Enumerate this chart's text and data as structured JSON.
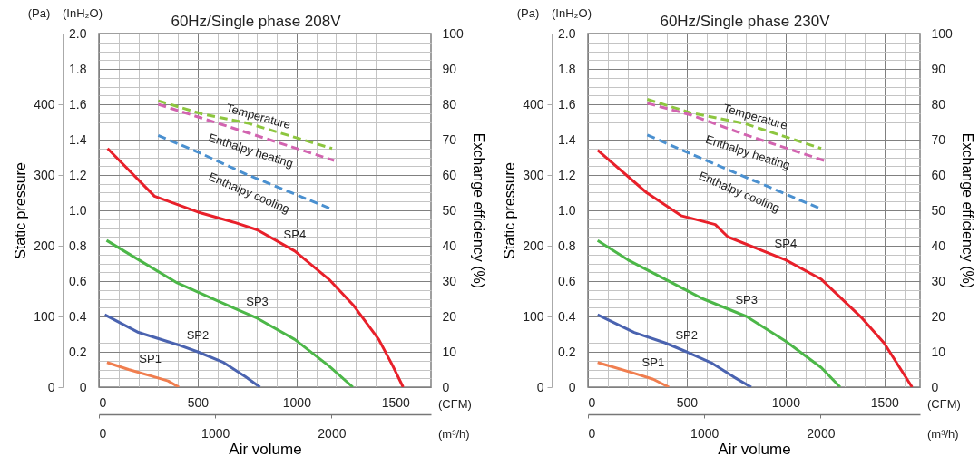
{
  "chart_data": [
    {
      "type": "line",
      "title": "60Hz/Single phase 208V",
      "xlabel": "Air volume",
      "ylabel": "Static pressure",
      "y2label": "Exchange efficiency (%)",
      "annotations": [
        "(Pa)",
        "(InH₂O)",
        "(CFM)",
        "(m³/h)"
      ],
      "xlim": [
        0,
        1680
      ],
      "xticks": [
        0,
        {
          "value": 100,
          "label": null
        },
        {
          "value": 200,
          "label": null
        },
        {
          "value": 300,
          "label": null
        },
        {
          "value": 400,
          "label": null
        },
        500,
        {
          "value": 600,
          "label": null
        },
        {
          "value": 700,
          "label": null
        },
        {
          "value": 800,
          "label": null
        },
        {
          "value": 900,
          "label": null
        },
        1000,
        {
          "value": 1100,
          "label": null
        },
        {
          "value": 1200,
          "label": null
        },
        {
          "value": 1300,
          "label": null
        },
        {
          "value": 1400,
          "label": null
        },
        1500,
        {
          "value": 1600,
          "label": null
        }
      ],
      "x2lim": [
        0,
        2855
      ],
      "x2ticks": [
        0,
        1000,
        2000
      ],
      "ylim": [
        0,
        2
      ],
      "yticks": [
        0,
        {
          "value": 0.05,
          "label": null
        },
        {
          "value": 0.1,
          "label": null
        },
        {
          "value": 0.15,
          "label": null
        },
        0.2,
        {
          "value": 0.25,
          "label": null
        },
        {
          "value": 0.3,
          "label": null
        },
        {
          "value": 0.35,
          "label": null
        },
        0.4,
        {
          "value": 0.45,
          "label": null
        },
        {
          "value": 0.5,
          "label": null
        },
        {
          "value": 0.55,
          "label": null
        },
        0.6,
        {
          "value": 0.65,
          "label": null
        },
        {
          "value": 0.7,
          "label": null
        },
        {
          "value": 0.75,
          "label": null
        },
        0.8,
        {
          "value": 0.85,
          "label": null
        },
        {
          "value": 0.9,
          "label": null
        },
        {
          "value": 0.95,
          "label": null
        },
        {
          "value": 1,
          "label": "1.0"
        },
        {
          "value": 1.05,
          "label": null
        },
        {
          "value": 1.1,
          "label": null
        },
        {
          "value": 1.15,
          "label": null
        },
        1.2,
        {
          "value": 1.25,
          "label": null
        },
        {
          "value": 1.3,
          "label": null
        },
        {
          "value": 1.35,
          "label": null
        },
        1.4,
        {
          "value": 1.45,
          "label": null
        },
        {
          "value": 1.5,
          "label": null
        },
        {
          "value": 1.55,
          "label": null
        },
        1.6,
        {
          "value": 1.65,
          "label": null
        },
        {
          "value": 1.7,
          "label": null
        },
        {
          "value": 1.75,
          "label": null
        },
        1.8,
        {
          "value": 1.85,
          "label": null
        },
        {
          "value": 1.9,
          "label": null
        },
        {
          "value": 1.95,
          "label": null
        },
        {
          "value": 2,
          "label": "2.0"
        }
      ],
      "y2lim": [
        0,
        100
      ],
      "y2ticks": [
        0,
        10,
        20,
        30,
        40,
        50,
        60,
        70,
        80,
        90,
        100
      ],
      "y3lim": [
        0,
        500
      ],
      "y3ticks": [
        0,
        100,
        200,
        300,
        400
      ],
      "grid": true,
      "series": [
        {
          "name": "SP1",
          "color": "#f07e4f",
          "line_style": "solid",
          "x": [
            41,
            150,
            260,
            350,
            405
          ],
          "values": [
            0.14,
            0.1,
            0.065,
            0.035,
            0
          ]
        },
        {
          "name": "SP2",
          "color": "#4a63b0",
          "line_style": "solid",
          "x": [
            30,
            200,
            400,
            500,
            630,
            740,
            815
          ],
          "values": [
            0.41,
            0.31,
            0.24,
            0.2,
            0.14,
            0.06,
            0
          ]
        },
        {
          "name": "SP3",
          "color": "#4cb748",
          "line_style": "solid",
          "x": [
            39,
            202,
            396,
            596,
            801,
            991,
            1164,
            1285
          ],
          "values": [
            0.83,
            0.72,
            0.59,
            0.49,
            0.39,
            0.27,
            0.12,
            0
          ]
        },
        {
          "name": "SP4",
          "color": "#e8202a",
          "line_style": "solid",
          "x": [
            44,
            281,
            502,
            691,
            801,
            991,
            1164,
            1290,
            1416,
            1487,
            1539
          ],
          "values": [
            1.35,
            1.08,
            0.99,
            0.93,
            0.89,
            0.77,
            0.61,
            0.46,
            0.27,
            0.12,
            0
          ]
        },
        {
          "name": "Temperature",
          "color": "#8dc63f",
          "line_style": "dashed",
          "axis": "y2",
          "x": [
            300,
            520,
            750,
            1180
          ],
          "values": [
            81,
            77.3,
            74.7,
            67.5
          ]
        },
        {
          "name": "Enthalpy heating",
          "color": "#d264b0",
          "line_style": "dashed",
          "axis": "y2",
          "x": [
            300,
            520,
            750,
            1190
          ],
          "values": [
            80,
            76.1,
            72,
            64.1
          ]
        },
        {
          "name": "Enthalpy cooling",
          "color": "#4a90d0",
          "line_style": "dashed",
          "axis": "y2",
          "x": [
            300,
            520,
            750,
            1175
          ],
          "values": [
            71.2,
            66,
            60.1,
            50.4
          ]
        }
      ]
    },
    {
      "type": "line",
      "title": "60Hz/Single phase 230V",
      "xlabel": "Air volume",
      "ylabel": "Static pressure",
      "y2label": "Exchange efficiency (%)",
      "annotations": [
        "(Pa)",
        "(InH₂O)",
        "(CFM)",
        "(m³/h)"
      ],
      "xlim": [
        0,
        1680
      ],
      "xticks": [
        0,
        {
          "value": 100,
          "label": null
        },
        {
          "value": 200,
          "label": null
        },
        {
          "value": 300,
          "label": null
        },
        {
          "value": 400,
          "label": null
        },
        500,
        {
          "value": 600,
          "label": null
        },
        {
          "value": 700,
          "label": null
        },
        {
          "value": 800,
          "label": null
        },
        {
          "value": 900,
          "label": null
        },
        1000,
        {
          "value": 1100,
          "label": null
        },
        {
          "value": 1200,
          "label": null
        },
        {
          "value": 1300,
          "label": null
        },
        {
          "value": 1400,
          "label": null
        },
        1500,
        {
          "value": 1600,
          "label": null
        }
      ],
      "x2lim": [
        0,
        2855
      ],
      "x2ticks": [
        0,
        1000,
        2000
      ],
      "ylim": [
        0,
        2
      ],
      "yticks": [
        0,
        {
          "value": 0.05,
          "label": null
        },
        {
          "value": 0.1,
          "label": null
        },
        {
          "value": 0.15,
          "label": null
        },
        0.2,
        {
          "value": 0.25,
          "label": null
        },
        {
          "value": 0.3,
          "label": null
        },
        {
          "value": 0.35,
          "label": null
        },
        0.4,
        {
          "value": 0.45,
          "label": null
        },
        {
          "value": 0.5,
          "label": null
        },
        {
          "value": 0.55,
          "label": null
        },
        0.6,
        {
          "value": 0.65,
          "label": null
        },
        {
          "value": 0.7,
          "label": null
        },
        {
          "value": 0.75,
          "label": null
        },
        0.8,
        {
          "value": 0.85,
          "label": null
        },
        {
          "value": 0.9,
          "label": null
        },
        {
          "value": 0.95,
          "label": null
        },
        {
          "value": 1,
          "label": "1.0"
        },
        {
          "value": 1.05,
          "label": null
        },
        {
          "value": 1.1,
          "label": null
        },
        {
          "value": 1.15,
          "label": null
        },
        1.2,
        {
          "value": 1.25,
          "label": null
        },
        {
          "value": 1.3,
          "label": null
        },
        {
          "value": 1.35,
          "label": null
        },
        1.4,
        {
          "value": 1.45,
          "label": null
        },
        {
          "value": 1.5,
          "label": null
        },
        {
          "value": 1.55,
          "label": null
        },
        1.6,
        {
          "value": 1.65,
          "label": null
        },
        {
          "value": 1.7,
          "label": null
        },
        {
          "value": 1.75,
          "label": null
        },
        1.8,
        {
          "value": 1.85,
          "label": null
        },
        {
          "value": 1.9,
          "label": null
        },
        {
          "value": 1.95,
          "label": null
        },
        {
          "value": 2,
          "label": "2.0"
        }
      ],
      "y2lim": [
        0,
        100
      ],
      "y2ticks": [
        0,
        10,
        20,
        30,
        40,
        50,
        60,
        70,
        80,
        90,
        100
      ],
      "y3lim": [
        0,
        500
      ],
      "y3ticks": [
        0,
        100,
        200,
        300,
        400
      ],
      "grid": true,
      "series": [
        {
          "name": "SP1",
          "color": "#f07e4f",
          "line_style": "solid",
          "x": [
            49,
            230,
            330,
            410
          ],
          "values": [
            0.14,
            0.08,
            0.045,
            0
          ]
        },
        {
          "name": "SP2",
          "color": "#4a63b0",
          "line_style": "solid",
          "x": [
            49,
            234,
            392,
            499,
            629,
            740,
            826
          ],
          "values": [
            0.41,
            0.31,
            0.25,
            0.2,
            0.135,
            0.056,
            0
          ]
        },
        {
          "name": "SP3",
          "color": "#4cb748",
          "line_style": "solid",
          "x": [
            49,
            202,
            392,
            581,
            802,
            1000,
            1181,
            1276
          ],
          "values": [
            0.83,
            0.72,
            0.61,
            0.5,
            0.4,
            0.26,
            0.11,
            0
          ]
        },
        {
          "name": "SP4",
          "color": "#e8202a",
          "line_style": "solid",
          "x": [
            49,
            297,
            471,
            644,
            708,
            1000,
            1181,
            1387,
            1498,
            1640
          ],
          "values": [
            1.34,
            1.1,
            0.97,
            0.92,
            0.85,
            0.72,
            0.61,
            0.39,
            0.25,
            0
          ]
        },
        {
          "name": "Temperature",
          "color": "#8dc63f",
          "line_style": "dashed",
          "axis": "y2",
          "x": [
            300,
            520,
            790,
            1180
          ],
          "values": [
            81.4,
            77.6,
            74.6,
            67.5
          ]
        },
        {
          "name": "Enthalpy heating",
          "color": "#d264b0",
          "line_style": "dashed",
          "axis": "y2",
          "x": [
            300,
            520,
            790,
            1200
          ],
          "values": [
            80.3,
            77,
            71.5,
            64
          ]
        },
        {
          "name": "Enthalpy cooling",
          "color": "#4a90d0",
          "line_style": "dashed",
          "axis": "y2",
          "x": [
            300,
            520,
            755,
            1175
          ],
          "values": [
            71.3,
            66,
            60.4,
            50.5
          ]
        }
      ]
    }
  ]
}
